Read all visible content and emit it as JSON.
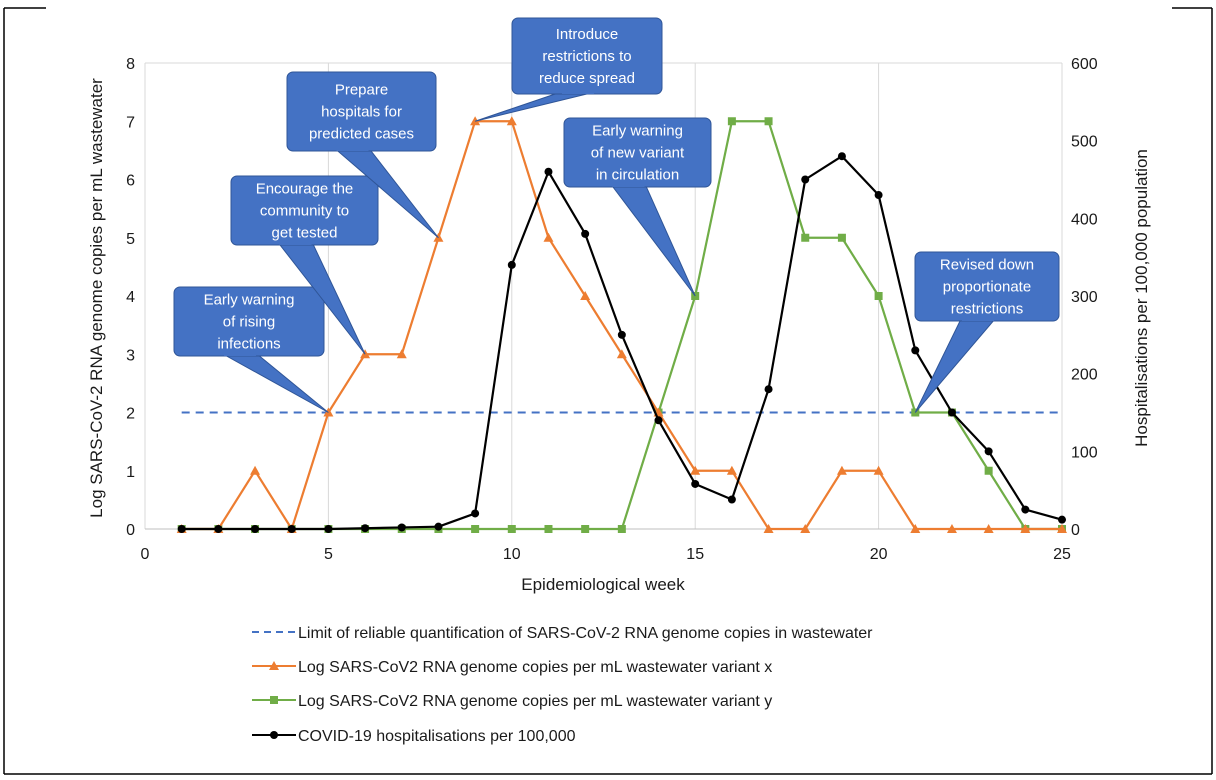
{
  "chart_data": {
    "type": "line",
    "xlabel": "Epidemiological week",
    "ylabel": "Log SARS-CoV-2 RNA genome copies per mL wastewater",
    "y2label": "Hospitalisations per 100,000 population",
    "xlim": [
      0,
      25
    ],
    "ylim": [
      0,
      8
    ],
    "y2lim": [
      0,
      600
    ],
    "x_ticks": [
      0,
      5,
      10,
      15,
      20,
      25
    ],
    "y_ticks": [
      0,
      1,
      2,
      3,
      4,
      5,
      6,
      7,
      8
    ],
    "y2_ticks": [
      0,
      100,
      200,
      300,
      400,
      500,
      600
    ],
    "grid": "vertical",
    "legend_position": "bottom",
    "series": [
      {
        "name": "Limit of reliable quantification of SARS-CoV-2 RNA genome copies in wastewater",
        "axis": "left",
        "style": "dashed",
        "marker": "none",
        "color": "#4472C4",
        "x": [
          1,
          25
        ],
        "values": [
          2,
          2
        ]
      },
      {
        "name": "Log SARS-CoV2 RNA genome copies per mL wastewater variant x",
        "axis": "left",
        "style": "solid",
        "marker": "triangle",
        "color": "#ED7D31",
        "x": [
          1,
          2,
          3,
          4,
          5,
          6,
          7,
          8,
          9,
          10,
          11,
          12,
          13,
          14,
          15,
          16,
          17,
          18,
          19,
          20,
          21,
          22,
          23,
          24,
          25
        ],
        "values": [
          0,
          0,
          1,
          0,
          2,
          3,
          3,
          5,
          7,
          7,
          5,
          4,
          3,
          2,
          1,
          1,
          0,
          0,
          1,
          1,
          0,
          0,
          0,
          0,
          0
        ]
      },
      {
        "name": "Log SARS-CoV2 RNA genome copies per mL wastewater variant y",
        "axis": "left",
        "style": "solid",
        "marker": "square",
        "color": "#70AD47",
        "x": [
          1,
          2,
          3,
          4,
          5,
          6,
          7,
          8,
          9,
          10,
          11,
          12,
          13,
          14,
          15,
          16,
          17,
          18,
          19,
          20,
          21,
          22,
          23,
          24,
          25
        ],
        "values": [
          0,
          0,
          0,
          0,
          0,
          0,
          0,
          0,
          0,
          0,
          0,
          0,
          0,
          2,
          4,
          7,
          7,
          5,
          5,
          4,
          2,
          2,
          1,
          0,
          0
        ]
      },
      {
        "name": "COVID-19 hospitalisations per 100,000",
        "axis": "right",
        "style": "solid",
        "marker": "circle",
        "color": "#000000",
        "x": [
          1,
          2,
          3,
          4,
          5,
          6,
          7,
          8,
          9,
          10,
          11,
          12,
          13,
          14,
          15,
          16,
          17,
          18,
          19,
          20,
          21,
          22,
          23,
          24,
          25
        ],
        "values": [
          0,
          0,
          0,
          0,
          0,
          1,
          2,
          3,
          20,
          340,
          460,
          380,
          250,
          140,
          58,
          38,
          180,
          450,
          480,
          430,
          230,
          150,
          100,
          25,
          12
        ]
      }
    ],
    "annotations": [
      {
        "text": [
          "Early warning",
          "of rising",
          "infections"
        ],
        "target_x": 5,
        "target_y": 2
      },
      {
        "text": [
          "Encourage the",
          "community to",
          "get tested"
        ],
        "target_x": 6,
        "target_y": 3
      },
      {
        "text": [
          "Prepare",
          "hospitals for",
          "predicted cases"
        ],
        "target_x": 8,
        "target_y": 5
      },
      {
        "text": [
          "Introduce",
          "restrictions to",
          "reduce spread"
        ],
        "target_x": 9,
        "target_y": 7
      },
      {
        "text": [
          "Early warning",
          "of new variant",
          "in circulation"
        ],
        "target_x": 15,
        "target_y": 4
      },
      {
        "text": [
          "Revised down",
          "proportionate",
          "restrictions"
        ],
        "target_x": 21,
        "target_y": 2
      }
    ]
  }
}
